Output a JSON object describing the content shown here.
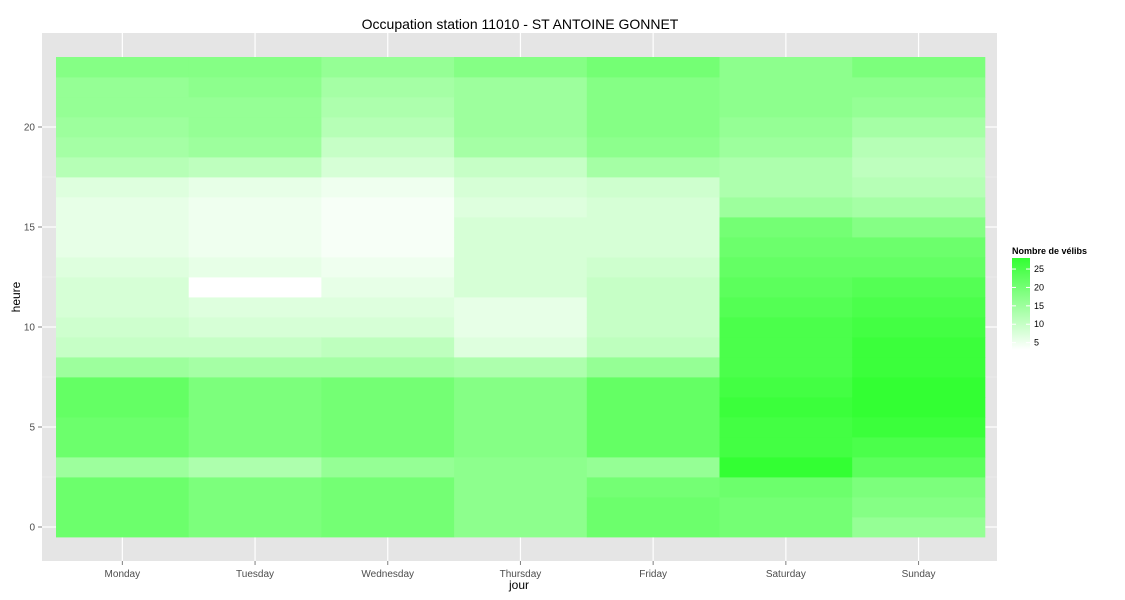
{
  "chart_data": {
    "type": "heatmap",
    "title": "Occupation station 11010 - ST ANTOINE GONNET",
    "xlabel": "jour",
    "ylabel": "heure",
    "x_categories": [
      "Monday",
      "Tuesday",
      "Wednesday",
      "Thursday",
      "Friday",
      "Saturday",
      "Sunday"
    ],
    "y_hours": [
      0,
      1,
      2,
      3,
      4,
      5,
      6,
      7,
      8,
      9,
      10,
      11,
      12,
      13,
      14,
      15,
      16,
      17,
      18,
      19,
      20,
      21,
      22,
      23
    ],
    "y_ticks": [
      0,
      5,
      10,
      15,
      20
    ],
    "y_tick_labels": [
      "0",
      "5",
      "10",
      "15",
      "20"
    ],
    "ylim": [
      -0.5,
      23.5
    ],
    "grid": true,
    "legend": {
      "title": "Nombre de vélibs",
      "placement": "right",
      "breaks": [
        5,
        10,
        15,
        20,
        25
      ],
      "break_labels": [
        "5",
        "10",
        "15",
        "20",
        "25"
      ],
      "min": 3,
      "max": 28,
      "low_color": "#ffffff",
      "high_color": "#33ff33"
    },
    "values_by_day": [
      [
        21,
        21,
        21,
        15,
        21,
        21,
        22,
        22,
        15,
        10,
        9,
        8,
        8,
        7,
        6,
        6,
        6,
        7,
        12,
        14,
        15,
        16,
        16,
        18
      ],
      [
        19,
        19,
        19,
        13,
        19,
        19,
        19,
        19,
        14,
        10,
        8,
        7,
        3,
        6,
        5,
        5,
        5,
        6,
        11,
        15,
        16,
        16,
        17,
        18
      ],
      [
        20,
        20,
        20,
        16,
        20,
        20,
        20,
        20,
        14,
        11,
        8,
        7,
        6,
        5,
        4,
        4,
        4,
        5,
        8,
        10,
        12,
        13,
        14,
        16
      ],
      [
        17,
        17,
        17,
        17,
        18,
        18,
        18,
        18,
        13,
        7,
        6,
        6,
        8,
        8,
        8,
        8,
        7,
        8,
        10,
        14,
        15,
        15,
        15,
        18
      ],
      [
        21,
        21,
        20,
        16,
        22,
        22,
        22,
        22,
        16,
        11,
        10,
        10,
        10,
        9,
        8,
        8,
        8,
        9,
        14,
        17,
        18,
        18,
        18,
        20
      ],
      [
        20,
        20,
        21,
        28,
        26,
        26,
        27,
        26,
        25,
        25,
        25,
        24,
        23,
        22,
        21,
        20,
        15,
        13,
        13,
        15,
        16,
        17,
        17,
        17
      ],
      [
        16,
        18,
        19,
        23,
        25,
        27,
        28,
        28,
        27,
        27,
        26,
        25,
        24,
        22,
        21,
        18,
        14,
        12,
        11,
        12,
        14,
        16,
        17,
        19
      ]
    ]
  }
}
